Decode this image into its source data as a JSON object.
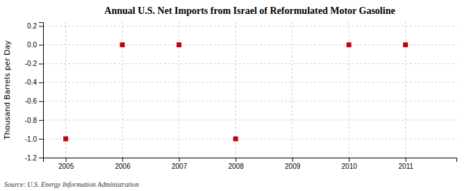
{
  "chart_data": {
    "type": "scatter",
    "title": "Annual U.S. Net Imports from Israel of Reformulated Motor Gasoline",
    "y_label": "Thousand Barrels per Day",
    "annotations": [
      "Source: U.S. Energy Information Administration"
    ],
    "x": [
      2005,
      2006,
      2007,
      2008,
      2010,
      2011
    ],
    "values": [
      -1,
      0,
      0,
      -1,
      0,
      0
    ],
    "color": "#cc0000",
    "marker": "square",
    "xlim": [
      2004.6,
      2011.9
    ],
    "ylim": [
      -1.2,
      0.24
    ],
    "xticks": [
      2005,
      2006,
      2007,
      2008,
      2009,
      2010,
      2011
    ],
    "yticks": [
      0.2,
      {
        "value": 0.0,
        "label": "0.0"
      },
      -0.2,
      -0.4,
      -0.6,
      -0.8,
      {
        "value": -1.0,
        "label": "-1.0"
      },
      -1.2
    ],
    "grid": true
  }
}
